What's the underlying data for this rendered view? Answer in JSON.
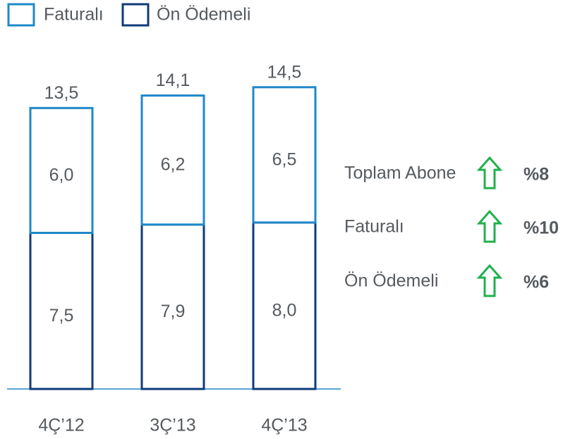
{
  "chart_data": {
    "type": "stacked_bar",
    "categories": [
      "4Ç’12",
      "3Ç’13",
      "4Ç’13"
    ],
    "series": [
      {
        "name": "Ön Ödemeli",
        "color": "#0f3b78",
        "values": [
          7.5,
          7.9,
          8.0
        ],
        "value_labels": [
          "7,5",
          "7,9",
          "8,0"
        ]
      },
      {
        "name": "Faturalı",
        "color": "#1f88c9",
        "values": [
          6.0,
          6.2,
          6.5
        ],
        "value_labels": [
          "6,0",
          "6,2",
          "6,5"
        ]
      }
    ],
    "totals": [
      13.5,
      14.1,
      14.5
    ],
    "total_labels": [
      "13,5",
      "14,1",
      "14,5"
    ],
    "legend_order": [
      1,
      0
    ],
    "ylim": [
      0,
      15
    ],
    "annotations": [
      {
        "label": "Toplam Abone",
        "value": 8,
        "value_label": "%8"
      },
      {
        "label": "Faturalı",
        "value": 10,
        "value_label": "%10"
      },
      {
        "label": "Ön Ödemeli",
        "value": 6,
        "value_label": "%6"
      }
    ],
    "annotation_color": "#1fb14c"
  }
}
